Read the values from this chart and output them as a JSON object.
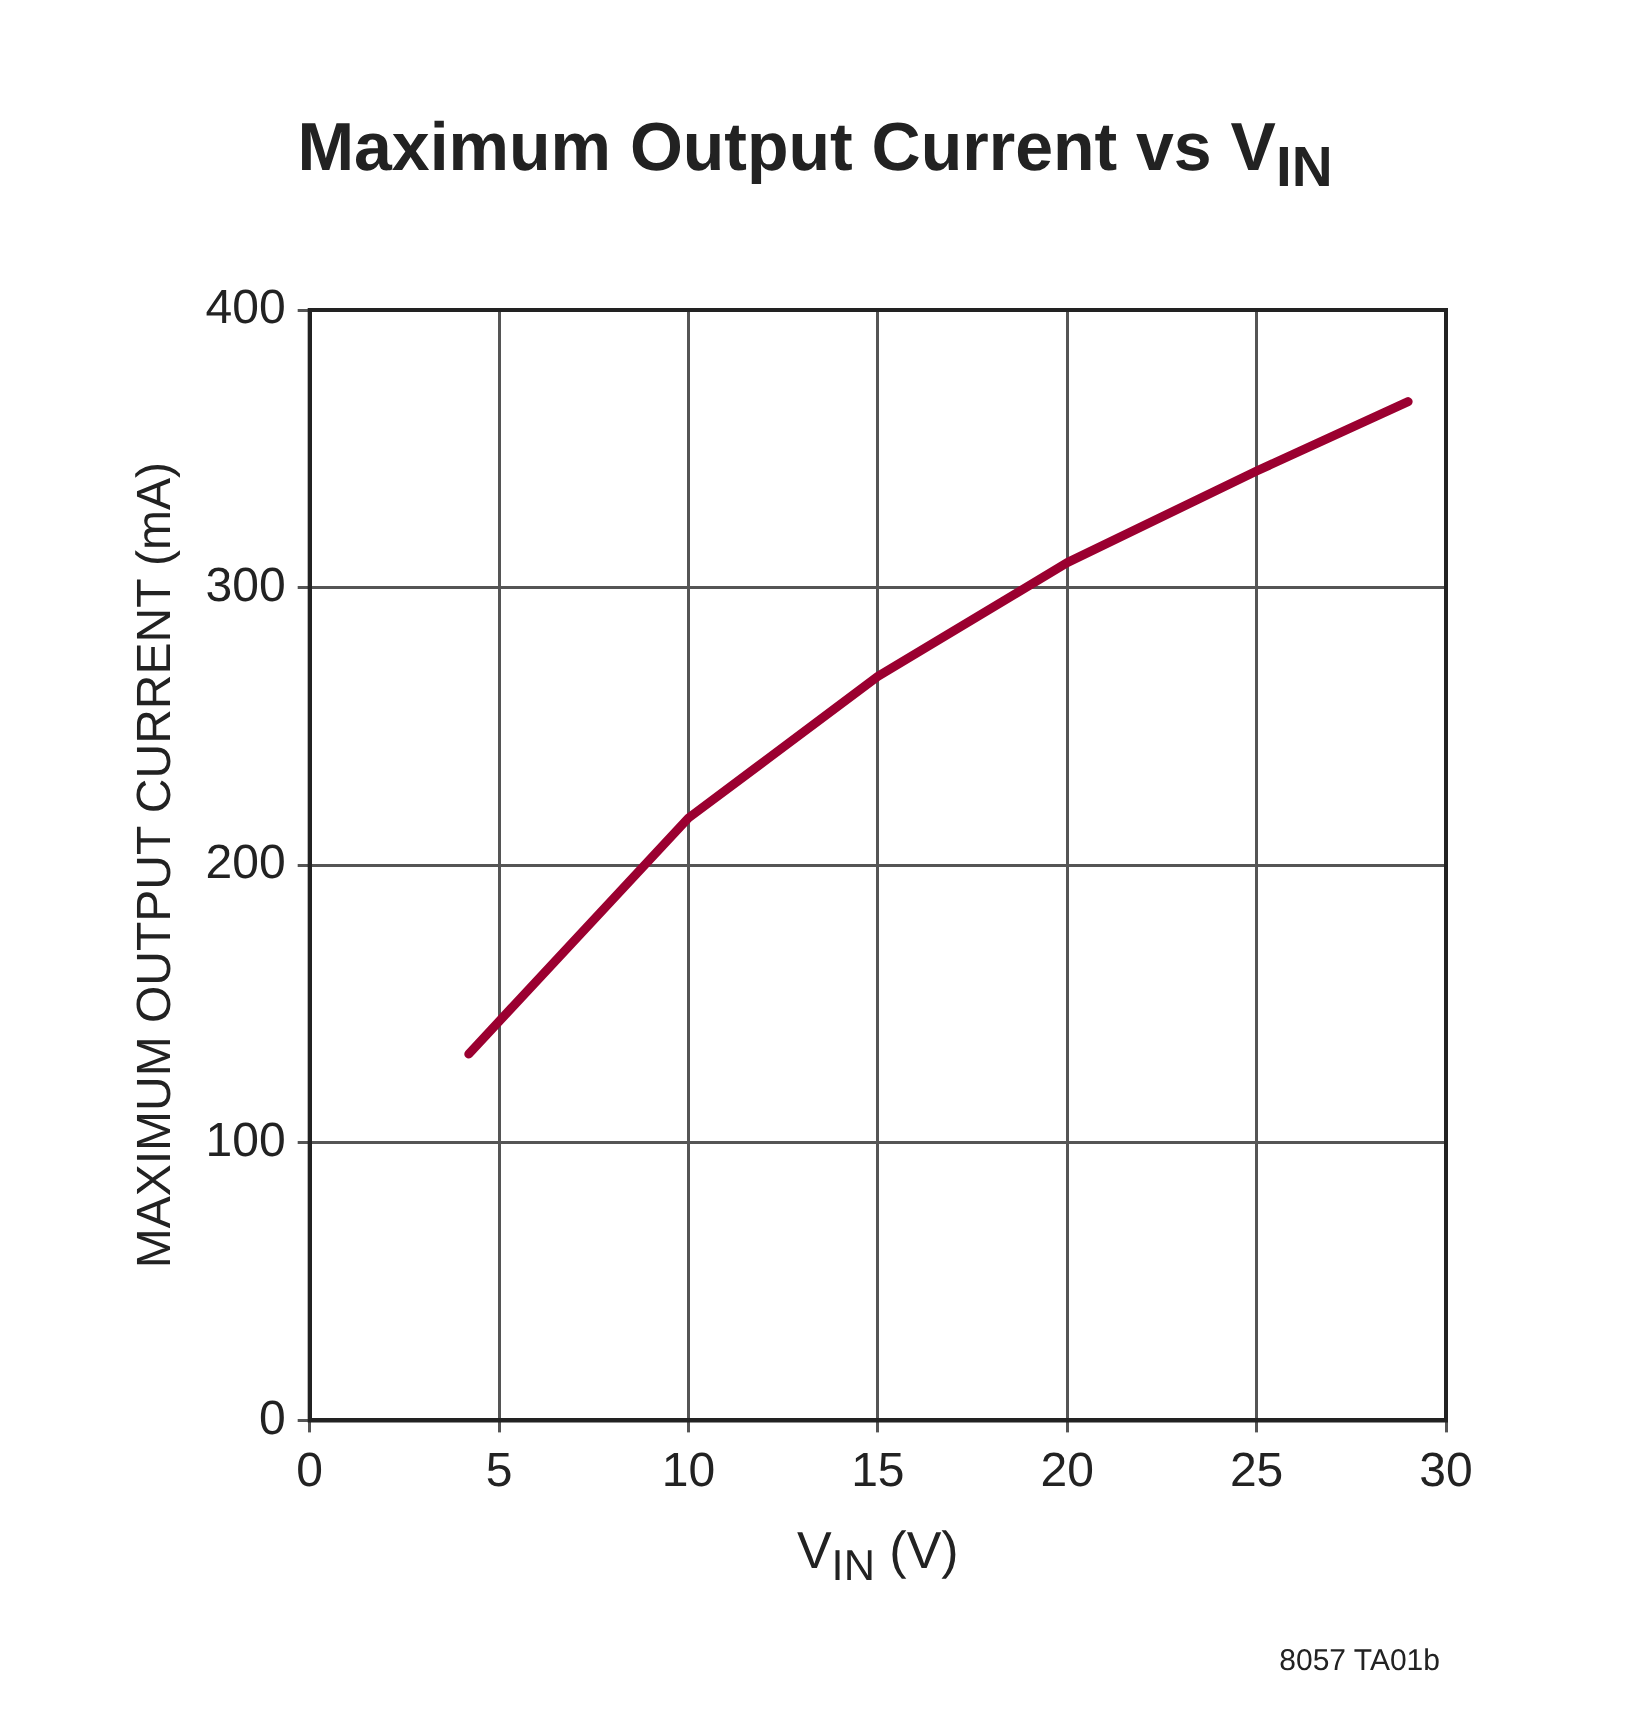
{
  "chart_data": {
    "type": "line",
    "title": "Maximum Output Current vs V$_{IN}$",
    "xlabel": "V$_{IN}$ (V)",
    "ylabel": "MAXIMUM OUTPUT CURRENT (mA)",
    "x": [
      4.2,
      10,
      15,
      20,
      25,
      29
    ],
    "series": [
      {
        "color": "#9b0030",
        "values": [
          132,
          217,
          268,
          309,
          342,
          367
        ]
      }
    ],
    "xlim": [
      0,
      30
    ],
    "xticks": [
      0,
      5,
      10,
      15,
      20,
      25,
      30
    ],
    "ylim": [
      0,
      400
    ],
    "yticks": [
      0,
      100,
      200,
      300,
      400
    ],
    "grid": true,
    "legend": false,
    "marker": "none",
    "line_style": "solid",
    "annotations": [
      "8057 TA01b"
    ]
  }
}
